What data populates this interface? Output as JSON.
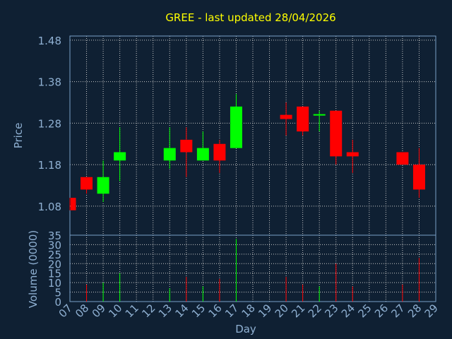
{
  "chart_data": {
    "type": "candlestick",
    "title": "GREE - last updated 28/04/2026",
    "xlabel": "Day",
    "price_panel": {
      "ylabel": "Price",
      "ylim": [
        1.01,
        1.49
      ],
      "yticks": [
        "1.48",
        "1.38",
        "1.28",
        "1.18",
        "1.08"
      ],
      "ytick_values": [
        1.48,
        1.38,
        1.28,
        1.18,
        1.08
      ]
    },
    "volume_panel": {
      "ylabel": "Volume (0000)",
      "ylim": [
        0,
        35
      ],
      "yticks": [
        "35",
        "30",
        "25",
        "20",
        "15",
        "10",
        "5",
        "0"
      ],
      "ytick_values": [
        35,
        30,
        25,
        20,
        15,
        10,
        5,
        0
      ]
    },
    "x_tick_labels": [
      "07",
      "08",
      "09",
      "10",
      "11",
      "12",
      "13",
      "14",
      "15",
      "16",
      "17",
      "18",
      "19",
      "20",
      "21",
      "22",
      "23",
      "24",
      "25",
      "26",
      "27",
      "28",
      "29"
    ],
    "candles": [
      {
        "day": "07",
        "open": 1.1,
        "high": 1.1,
        "low": 1.07,
        "close": 1.07,
        "volume": 0
      },
      {
        "day": "08",
        "open": 1.15,
        "high": 1.15,
        "low": 1.11,
        "close": 1.12,
        "volume": 9
      },
      {
        "day": "09",
        "open": 1.11,
        "high": 1.19,
        "low": 1.09,
        "close": 1.15,
        "volume": 10
      },
      {
        "day": "10",
        "open": 1.19,
        "high": 1.27,
        "low": 1.14,
        "close": 1.21,
        "volume": 15
      },
      {
        "day": "13",
        "open": 1.19,
        "high": 1.27,
        "low": 1.17,
        "close": 1.22,
        "volume": 7
      },
      {
        "day": "14",
        "open": 1.24,
        "high": 1.27,
        "low": 1.15,
        "close": 1.21,
        "volume": 13
      },
      {
        "day": "15",
        "open": 1.19,
        "high": 1.26,
        "low": 1.19,
        "close": 1.22,
        "volume": 8
      },
      {
        "day": "16",
        "open": 1.23,
        "high": 1.24,
        "low": 1.16,
        "close": 1.19,
        "volume": 12
      },
      {
        "day": "17",
        "open": 1.22,
        "high": 1.35,
        "low": 1.22,
        "close": 1.32,
        "volume": 33
      },
      {
        "day": "20",
        "open": 1.3,
        "high": 1.33,
        "low": 1.25,
        "close": 1.29,
        "volume": 13
      },
      {
        "day": "21",
        "open": 1.32,
        "high": 1.32,
        "low": 1.25,
        "close": 1.26,
        "volume": 9
      },
      {
        "day": "22",
        "open": 1.3,
        "high": 1.31,
        "low": 1.26,
        "close": 1.3,
        "volume": 8
      },
      {
        "day": "23",
        "open": 1.31,
        "high": 1.31,
        "low": 1.18,
        "close": 1.2,
        "volume": 20
      },
      {
        "day": "24",
        "open": 1.21,
        "high": 1.24,
        "low": 1.16,
        "close": 1.2,
        "volume": 8
      },
      {
        "day": "27",
        "open": 1.21,
        "high": 1.21,
        "low": 1.18,
        "close": 1.18,
        "volume": 9
      },
      {
        "day": "28",
        "open": 1.18,
        "high": 1.22,
        "low": 1.1,
        "close": 1.12,
        "volume": 23
      }
    ],
    "grid": true,
    "colors": {
      "background": "#0f2033",
      "plot_border": "#7a9fc7",
      "axis_text": "#8fb0d2",
      "title_text": "#ffff00",
      "up": "#00ff00",
      "down": "#ff0000",
      "grid": "#c8c8c8"
    }
  }
}
